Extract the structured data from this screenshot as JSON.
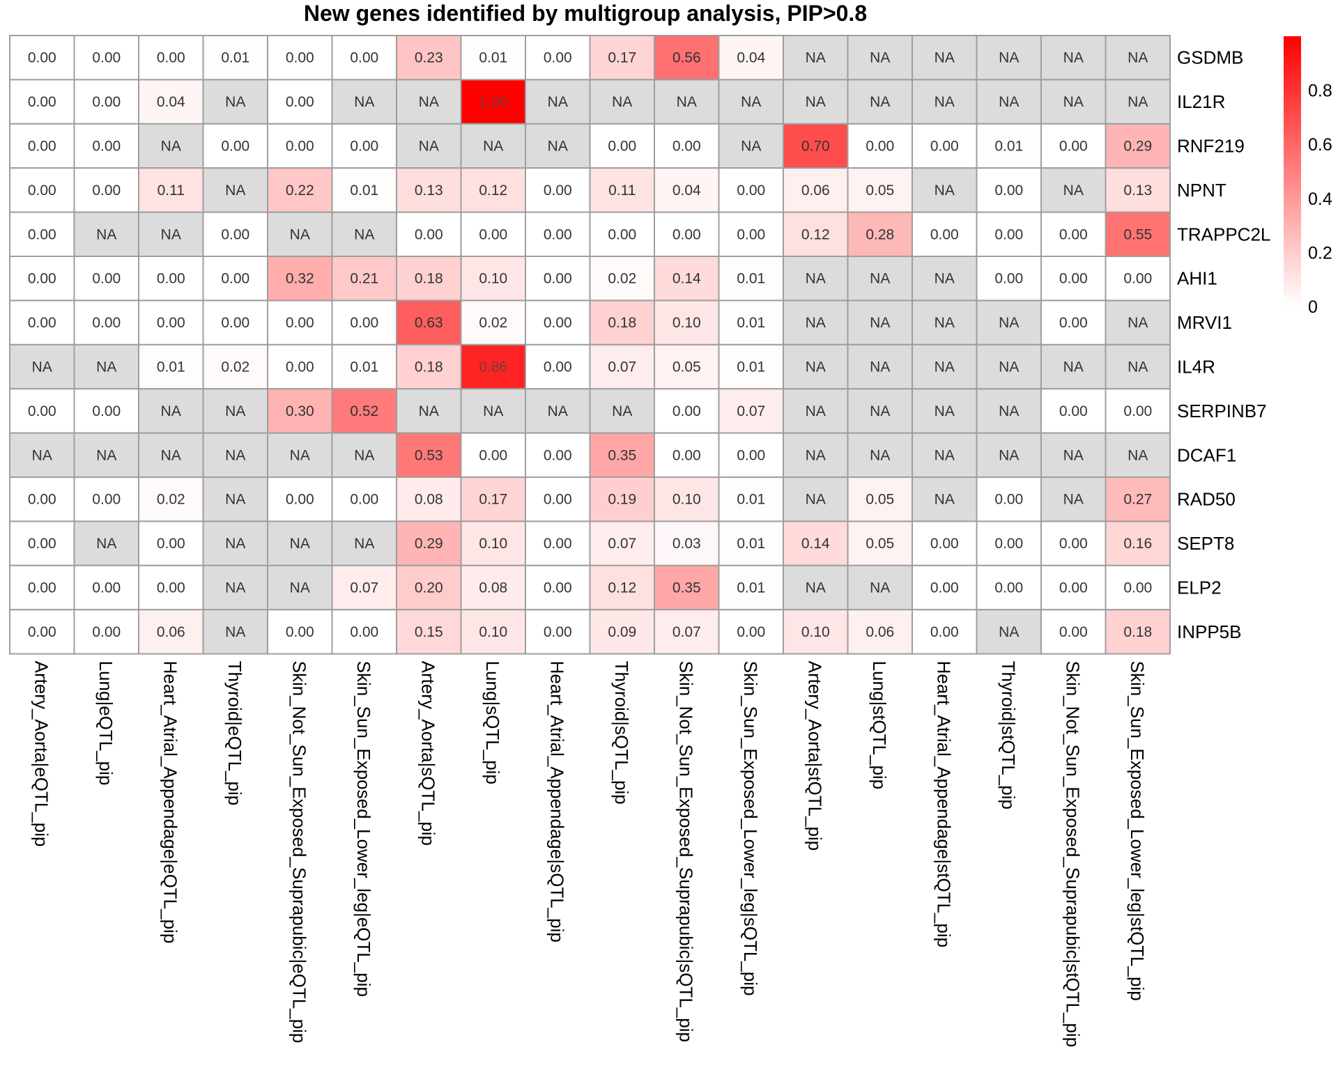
{
  "chart_data": {
    "type": "heatmap",
    "title": "New genes identified by multigroup analysis, PIP>0.8",
    "rows": [
      "GSDMB",
      "IL21R",
      "RNF219",
      "NPNT",
      "TRAPPC2L",
      "AHI1",
      "MRVI1",
      "IL4R",
      "SERPINB7",
      "DCAF1",
      "RAD50",
      "SEPT8",
      "ELP2",
      "INPP5B"
    ],
    "columns": [
      "Artery_Aorta|eQTL_pip",
      "Lung|eQTL_pip",
      "Heart_Atrial_Appendage|eQTL_pip",
      "Thyroid|eQTL_pip",
      "Skin_Not_Sun_Exposed_Suprapubic|eQTL_pip",
      "Skin_Sun_Exposed_Lower_leg|eQTL_pip",
      "Artery_Aorta|sQTL_pip",
      "Lung|sQTL_pip",
      "Heart_Atrial_Appendage|sQTL_pip",
      "Thyroid|sQTL_pip",
      "Skin_Not_Sun_Exposed_Suprapubic|sQTL_pip",
      "Skin_Sun_Exposed_Lower_leg|sQTL_pip",
      "Artery_Aorta|stQTL_pip",
      "Lung|stQTL_pip",
      "Heart_Atrial_Appendage|stQTL_pip",
      "Thyroid|stQTL_pip",
      "Skin_Not_Sun_Exposed_Suprapubic|stQTL_pip",
      "Skin_Sun_Exposed_Lower_leg|stQTL_pip"
    ],
    "values": [
      [
        "0.00",
        "0.00",
        "0.00",
        "0.01",
        "0.00",
        "0.00",
        "0.23",
        "0.01",
        "0.00",
        "0.17",
        "0.56",
        "0.04",
        "NA",
        "NA",
        "NA",
        "NA",
        "NA",
        "NA"
      ],
      [
        "0.00",
        "0.00",
        "0.04",
        "NA",
        "0.00",
        "NA",
        "NA",
        "1.00",
        "NA",
        "NA",
        "NA",
        "NA",
        "NA",
        "NA",
        "NA",
        "NA",
        "NA",
        "NA"
      ],
      [
        "0.00",
        "0.00",
        "NA",
        "0.00",
        "0.00",
        "0.00",
        "NA",
        "NA",
        "NA",
        "0.00",
        "0.00",
        "NA",
        "0.70",
        "0.00",
        "0.00",
        "0.01",
        "0.00",
        "0.29"
      ],
      [
        "0.00",
        "0.00",
        "0.11",
        "NA",
        "0.22",
        "0.01",
        "0.13",
        "0.12",
        "0.00",
        "0.11",
        "0.04",
        "0.00",
        "0.06",
        "0.05",
        "NA",
        "0.00",
        "NA",
        "0.13"
      ],
      [
        "0.00",
        "NA",
        "NA",
        "0.00",
        "NA",
        "NA",
        "0.00",
        "0.00",
        "0.00",
        "0.00",
        "0.00",
        "0.00",
        "0.12",
        "0.28",
        "0.00",
        "0.00",
        "0.00",
        "0.55"
      ],
      [
        "0.00",
        "0.00",
        "0.00",
        "0.00",
        "0.32",
        "0.21",
        "0.18",
        "0.10",
        "0.00",
        "0.02",
        "0.14",
        "0.01",
        "NA",
        "NA",
        "NA",
        "0.00",
        "0.00",
        "0.00"
      ],
      [
        "0.00",
        "0.00",
        "0.00",
        "0.00",
        "0.00",
        "0.00",
        "0.63",
        "0.02",
        "0.00",
        "0.18",
        "0.10",
        "0.01",
        "NA",
        "NA",
        "NA",
        "NA",
        "0.00",
        "NA"
      ],
      [
        "NA",
        "NA",
        "0.01",
        "0.02",
        "0.00",
        "0.01",
        "0.18",
        "0.86",
        "0.00",
        "0.07",
        "0.05",
        "0.01",
        "NA",
        "NA",
        "NA",
        "NA",
        "NA",
        "NA"
      ],
      [
        "0.00",
        "0.00",
        "NA",
        "NA",
        "0.30",
        "0.52",
        "NA",
        "NA",
        "NA",
        "NA",
        "0.00",
        "0.07",
        "NA",
        "NA",
        "NA",
        "NA",
        "0.00",
        "0.00"
      ],
      [
        "NA",
        "NA",
        "NA",
        "NA",
        "NA",
        "NA",
        "0.53",
        "0.00",
        "0.00",
        "0.35",
        "0.00",
        "0.00",
        "NA",
        "NA",
        "NA",
        "NA",
        "NA",
        "NA"
      ],
      [
        "0.00",
        "0.00",
        "0.02",
        "NA",
        "0.00",
        "0.00",
        "0.08",
        "0.17",
        "0.00",
        "0.19",
        "0.10",
        "0.01",
        "NA",
        "0.05",
        "NA",
        "0.00",
        "NA",
        "0.27"
      ],
      [
        "0.00",
        "NA",
        "0.00",
        "NA",
        "NA",
        "NA",
        "0.29",
        "0.10",
        "0.00",
        "0.07",
        "0.03",
        "0.01",
        "0.14",
        "0.05",
        "0.00",
        "0.00",
        "0.00",
        "0.16"
      ],
      [
        "0.00",
        "0.00",
        "0.00",
        "NA",
        "NA",
        "0.07",
        "0.20",
        "0.08",
        "0.00",
        "0.12",
        "0.35",
        "0.01",
        "NA",
        "NA",
        "0.00",
        "0.00",
        "0.00",
        "0.00"
      ],
      [
        "0.00",
        "0.00",
        "0.06",
        "NA",
        "0.00",
        "0.00",
        "0.15",
        "0.10",
        "0.00",
        "0.09",
        "0.07",
        "0.00",
        "0.10",
        "0.06",
        "0.00",
        "NA",
        "0.00",
        "0.18"
      ]
    ],
    "na_label": "NA",
    "legend": {
      "position": "right",
      "min": 0,
      "max": 1,
      "ticks": [
        "0",
        "0.2",
        "0.4",
        "0.6",
        "0.8"
      ],
      "low_color": "#ffffff",
      "high_color": "#ff0000"
    },
    "na_color": "#dcdcdc",
    "border_color": "#9e9e9e"
  }
}
